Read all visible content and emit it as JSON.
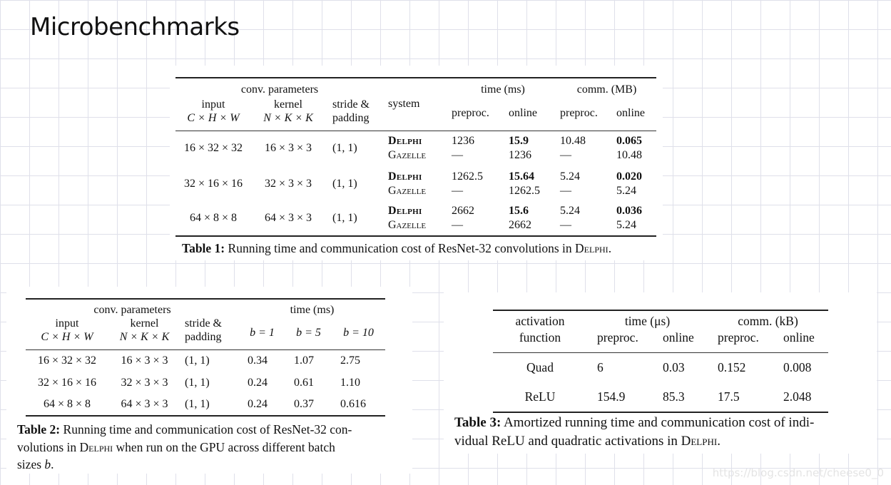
{
  "page_title": "Microbenchmarks",
  "table1": {
    "hdr_conv": "conv. parameters",
    "hdr_input": "input",
    "hdr_input_math": "C × H × W",
    "hdr_kernel": "kernel",
    "hdr_kernel_math": "N × K × K",
    "hdr_stride": "stride &",
    "hdr_padding": "padding",
    "hdr_system": "system",
    "hdr_time": "time (ms)",
    "hdr_comm": "comm. (MB)",
    "hdr_preproc": "preproc.",
    "hdr_online": "online",
    "rows": [
      {
        "input": "16 × 32 × 32",
        "kernel": "16 × 3 × 3",
        "stride": "(1, 1)",
        "sys1": "Delphi",
        "sys2": "Gazelle",
        "t_pre1": "1236",
        "t_pre2": "—",
        "t_on1": "15.9",
        "t_on2": "1236",
        "c_pre1": "10.48",
        "c_pre2": "—",
        "c_on1": "0.065",
        "c_on2": "10.48"
      },
      {
        "input": "32 × 16 × 16",
        "kernel": "32 × 3 × 3",
        "stride": "(1, 1)",
        "sys1": "Delphi",
        "sys2": "Gazelle",
        "t_pre1": "1262.5",
        "t_pre2": "—",
        "t_on1": "15.64",
        "t_on2": "1262.5",
        "c_pre1": "5.24",
        "c_pre2": "—",
        "c_on1": "0.020",
        "c_on2": "5.24"
      },
      {
        "input": "64 × 8 × 8",
        "kernel": "64 × 3 × 3",
        "stride": "(1, 1)",
        "sys1": "Delphi",
        "sys2": "Gazelle",
        "t_pre1": "2662",
        "t_pre2": "—",
        "t_on1": "15.6",
        "t_on2": "2662",
        "c_pre1": "5.24",
        "c_pre2": "—",
        "c_on1": "0.036",
        "c_on2": "5.24"
      }
    ],
    "caption_label": "Table 1:",
    "caption_text": "Running time and communication cost of ResNet-32 convolutions in",
    "caption_sc": "Delphi",
    "caption_end": "."
  },
  "table2": {
    "hdr_conv": "conv. parameters",
    "hdr_input": "input",
    "hdr_input_math": "C × H × W",
    "hdr_kernel": "kernel",
    "hdr_kernel_math": "N × K × K",
    "hdr_stride": "stride &",
    "hdr_padding": "padding",
    "hdr_time": "time (ms)",
    "hdr_b1": "b = 1",
    "hdr_b5": "b = 5",
    "hdr_b10": "b = 10",
    "rows": [
      {
        "input": "16 × 32 × 32",
        "kernel": "16 × 3 × 3",
        "stride": "(1, 1)",
        "b1": "0.34",
        "b5": "1.07",
        "b10": "2.75"
      },
      {
        "input": "32 × 16 × 16",
        "kernel": "32 × 3 × 3",
        "stride": "(1, 1)",
        "b1": "0.24",
        "b5": "0.61",
        "b10": "1.10"
      },
      {
        "input": "64 × 8 × 8",
        "kernel": "64 × 3 × 3",
        "stride": "(1, 1)",
        "b1": "0.24",
        "b5": "0.37",
        "b10": "0.616"
      }
    ],
    "caption_label": "Table 2:",
    "caption_line1": "Running time and communication cost of ResNet-32 con-",
    "caption_line2a": "volutions in",
    "caption_sc": "Delphi",
    "caption_line2b": "when run on the GPU across different batch",
    "caption_line3a": "sizes",
    "caption_var": "b",
    "caption_end": "."
  },
  "table3": {
    "hdr_activation": "activation",
    "hdr_function": "function",
    "hdr_time": "time (μs)",
    "hdr_comm": "comm. (kB)",
    "hdr_preproc": "preproc.",
    "hdr_online": "online",
    "rows": [
      {
        "fn": "Quad",
        "t_pre": "6",
        "t_on": "0.03",
        "c_pre": "0.152",
        "c_on": "0.008"
      },
      {
        "fn": "ReLU",
        "t_pre": "154.9",
        "t_on": "85.3",
        "c_pre": "17.5",
        "c_on": "2.048"
      }
    ],
    "caption_label": "Table 3:",
    "caption_line1": "Amortized running time and communication cost of indi-",
    "caption_line2a": "vidual ReLU and quadratic activations in",
    "caption_sc": "Delphi",
    "caption_end": "."
  },
  "watermark": "https://blog.csdn.net/cheese0_0"
}
